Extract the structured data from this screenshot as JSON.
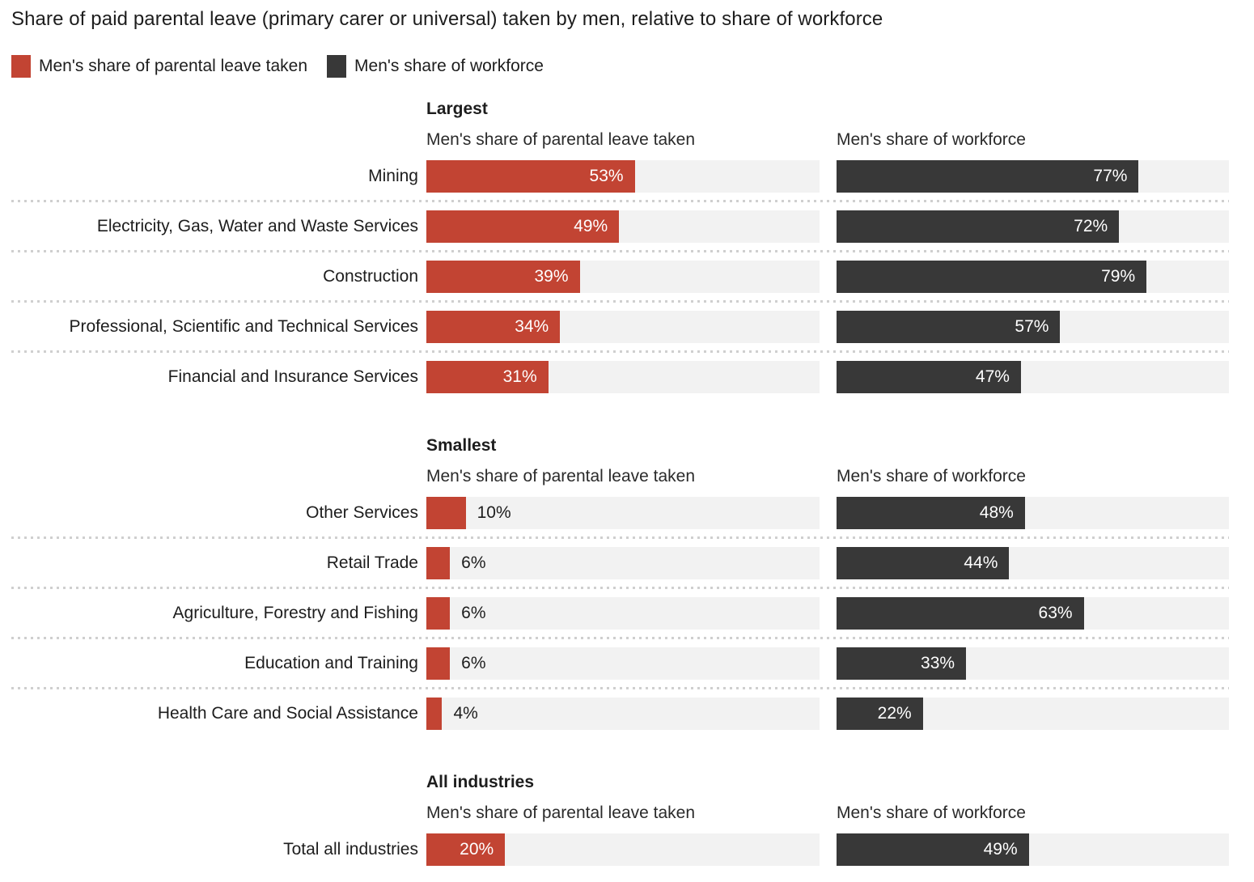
{
  "title": "Share of paid parental leave (primary carer or universal) taken by men, relative to share of workforce",
  "legend": [
    {
      "label": "Men's share of parental leave taken",
      "color": "#c24433"
    },
    {
      "label": "Men's share of workforce",
      "color": "#383838"
    }
  ],
  "chart_data": {
    "type": "bar",
    "orientation": "horizontal",
    "unit": "%",
    "xlim": [
      0,
      100
    ],
    "grid": "off",
    "colors": {
      "parental_leave": "#c24433",
      "workforce": "#383838",
      "bar_track": "#f2f2f2",
      "separator": "#cfcfcf"
    },
    "series_names": [
      "Men's share of parental leave taken",
      "Men's share of workforce"
    ],
    "sections": [
      {
        "heading": "Largest",
        "col1_header": "Men's share of parental leave taken",
        "col2_header": "Men's share of workforce",
        "rows": [
          {
            "label": "Mining",
            "leave": 53,
            "workforce": 77
          },
          {
            "label": "Electricity, Gas, Water and Waste Services",
            "leave": 49,
            "workforce": 72
          },
          {
            "label": "Construction",
            "leave": 39,
            "workforce": 79
          },
          {
            "label": "Professional, Scientific and Technical Services",
            "leave": 34,
            "workforce": 57
          },
          {
            "label": "Financial and Insurance Services",
            "leave": 31,
            "workforce": 47
          }
        ]
      },
      {
        "heading": "Smallest",
        "col1_header": "Men's share of parental leave taken",
        "col2_header": "Men's share of workforce",
        "rows": [
          {
            "label": "Other Services",
            "leave": 10,
            "workforce": 48
          },
          {
            "label": "Retail Trade",
            "leave": 6,
            "workforce": 44
          },
          {
            "label": "Agriculture, Forestry and Fishing",
            "leave": 6,
            "workforce": 63
          },
          {
            "label": "Education and Training",
            "leave": 6,
            "workforce": 33
          },
          {
            "label": "Health Care and Social Assistance",
            "leave": 4,
            "workforce": 22
          }
        ]
      },
      {
        "heading": "All industries",
        "col1_header": "Men's share of parental leave taken",
        "col2_header": "Men's share of workforce",
        "rows": [
          {
            "label": "Total all industries",
            "leave": 20,
            "workforce": 49
          }
        ]
      }
    ]
  }
}
